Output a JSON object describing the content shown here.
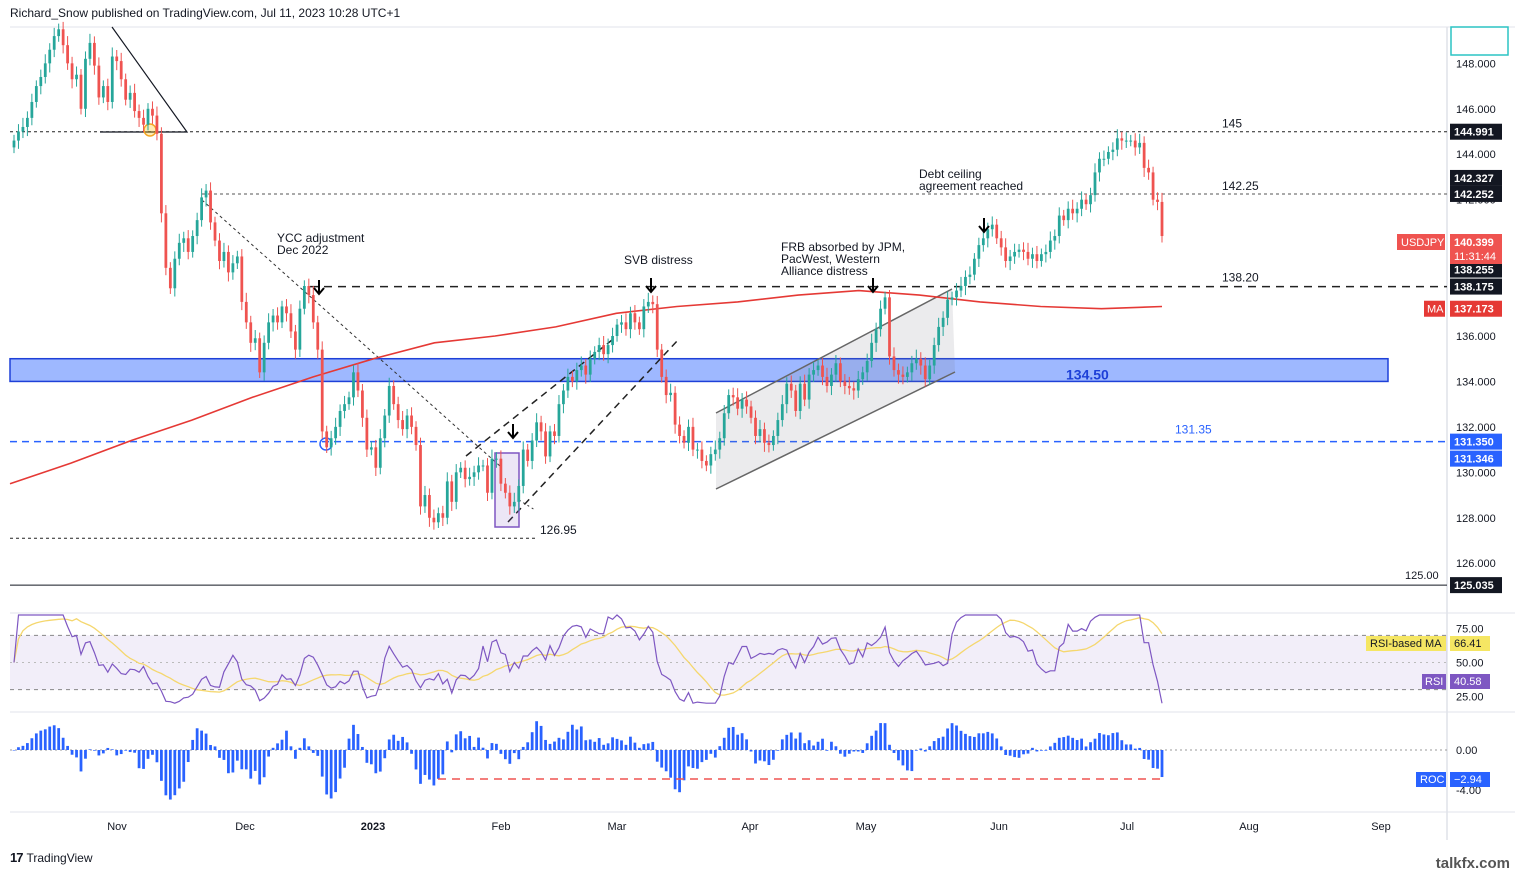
{
  "header": {
    "published_text": "Richard_Snow published on TradingView.com, Jul 11, 2023 10:28 UTC+1"
  },
  "footer": {
    "logo_text": "TradingView",
    "watermark": "talkfx.com"
  },
  "colors": {
    "bull": "#26a69a",
    "bear": "#ef5350",
    "ma": "#e53935",
    "rsi": "#7e57c2",
    "rsi_ma": "#f5d76e",
    "roc": "#2962ff",
    "zone": "#2962ff"
  },
  "chart_data": [
    {
      "type": "candlestick",
      "symbol": "USDJPY",
      "price_labels": {
        "USDJPY": "140.399",
        "countdown": "11:31:44",
        "MA": "137.173"
      },
      "ylim": [
        124.6,
        149.6
      ],
      "y_ticks": [
        "148.000",
        "146.000",
        "144.000",
        "142.000",
        "140.000",
        "138.000",
        "136.000",
        "134.000",
        "132.000",
        "130.000",
        "128.000",
        "126.000"
      ],
      "x_ticks": [
        "Nov",
        "Dec",
        "2023",
        "Feb",
        "Mar",
        "Apr",
        "May",
        "Jun",
        "Jul",
        "Aug",
        "Sep"
      ],
      "levels": [
        {
          "label": "145",
          "value": 144.991,
          "axis_label": "144.991"
        },
        {
          "label": "142.25",
          "value": 142.252,
          "axis_label": "142.252"
        },
        {
          "label": "138.20",
          "value": 138.175,
          "axis_label": "138.175"
        },
        {
          "label": "131.35",
          "value": 131.35,
          "axis_label": "131.350"
        },
        {
          "label": "125.00",
          "value": 125.035,
          "axis_label": "125.035"
        },
        {
          "label": "126.95",
          "value": 127.1,
          "axis_label": ""
        }
      ],
      "extra_axis_labels": [
        "142.327",
        "138.255",
        "131.346"
      ],
      "zone": {
        "label": "134.50",
        "low": 134.0,
        "high": 135.0
      },
      "annotations": [
        {
          "text": [
            "YCC adjustment",
            "Dec 2022"
          ]
        },
        {
          "text": [
            "SVB distress"
          ]
        },
        {
          "text": [
            "FRB absorbed by JPM,",
            "PacWest, Western",
            "Alliance distress"
          ]
        },
        {
          "text": [
            "Debt ceiling",
            "agreement reached"
          ]
        }
      ],
      "closes": [
        144.6,
        145.0,
        145.2,
        145.6,
        146.3,
        147.0,
        147.4,
        148.0,
        148.6,
        149.2,
        149.5,
        148.8,
        148.0,
        147.3,
        147.5,
        146.0,
        148.2,
        148.9,
        147.9,
        146.5,
        147.0,
        146.3,
        148.3,
        148.1,
        147.3,
        146.4,
        146.7,
        145.9,
        145.6,
        145.3,
        146.0,
        145.7,
        144.9,
        141.4,
        139.0,
        138.1,
        139.4,
        140.1,
        140.3,
        139.7,
        140.4,
        141.1,
        142.1,
        142.4,
        141.0,
        140.2,
        139.3,
        139.7,
        138.8,
        139.2,
        139.5,
        137.5,
        136.6,
        135.7,
        135.9,
        134.4,
        135.7,
        136.6,
        136.9,
        136.6,
        137.3,
        137.0,
        136.2,
        135.4,
        137.2,
        138.2,
        137.8,
        136.6,
        135.4,
        131.8,
        131.1,
        131.5,
        132.0,
        132.7,
        133.0,
        133.3,
        134.4,
        133.6,
        132.4,
        131.0,
        131.1,
        130.2,
        131.5,
        132.5,
        133.8,
        133.0,
        132.3,
        131.9,
        132.5,
        132.0,
        131.2,
        128.5,
        129.0,
        128.0,
        127.8,
        128.2,
        128.0,
        129.6,
        128.7,
        130.0,
        130.2,
        129.7,
        129.8,
        130.0,
        130.3,
        130.3,
        129.1,
        130.6,
        130.6,
        129.5,
        129.1,
        128.5,
        128.7,
        129.4,
        131.0,
        130.5,
        131.4,
        132.2,
        131.8,
        130.7,
        131.8,
        131.6,
        133.0,
        133.6,
        134.2,
        134.0,
        134.5,
        134.7,
        134.3,
        135.0,
        135.3,
        135.6,
        135.2,
        135.6,
        136.0,
        136.5,
        136.6,
        136.3,
        137.0,
        136.6,
        136.3,
        137.3,
        137.5,
        137.4,
        135.4,
        134.2,
        133.4,
        133.5,
        132.1,
        131.6,
        131.3,
        132.0,
        131.0,
        131.0,
        130.5,
        130.3,
        130.8,
        131.0,
        131.5,
        132.6,
        133.4,
        133.3,
        132.8,
        133.2,
        132.9,
        132.4,
        131.6,
        131.9,
        131.3,
        131.2,
        131.6,
        132.3,
        133.0,
        133.9,
        133.6,
        132.7,
        133.9,
        133.2,
        134.3,
        134.5,
        134.7,
        134.2,
        133.8,
        134.3,
        134.8,
        134.0,
        133.8,
        133.7,
        133.6,
        134.1,
        134.4,
        134.9,
        135.7,
        136.3,
        137.2,
        137.7,
        135.1,
        134.5,
        134.3,
        134.2,
        134.4,
        134.8,
        135.0,
        134.7,
        134.1,
        134.7,
        135.6,
        136.4,
        136.8,
        137.6,
        137.7,
        138.0,
        138.2,
        138.6,
        138.7,
        139.4,
        140.0,
        140.3,
        140.7,
        140.9,
        140.3,
        139.9,
        139.3,
        139.5,
        139.7,
        139.8,
        139.7,
        139.4,
        139.6,
        139.3,
        139.6,
        139.7,
        140.2,
        140.4,
        141.3,
        141.1,
        141.6,
        141.4,
        141.6,
        142.0,
        141.8,
        142.2,
        143.2,
        143.8,
        143.8,
        144.1,
        144.2,
        144.7,
        144.6,
        144.6,
        144.6,
        144.3,
        144.5,
        143.4,
        143.2,
        142.0,
        141.9,
        140.4
      ],
      "ma_values": [
        129.5,
        130.4,
        131.4,
        132.3,
        133.3,
        134.2,
        135.0,
        135.7,
        136.0,
        136.4,
        137.0,
        137.3,
        137.5,
        137.8,
        138.0,
        137.8,
        137.5,
        137.3,
        137.2,
        137.3
      ],
      "rsi": {
        "label": "RSI",
        "value": 40.58,
        "ma_label": "RSI-based MA",
        "ma_value": 66.41,
        "ticks": [
          "75.00",
          "50.00",
          "25.00"
        ],
        "upper": 70,
        "lower": 30
      },
      "roc": {
        "label": "ROC",
        "value": -2.94,
        "ticks": [
          "0.00",
          "-4.00"
        ]
      }
    }
  ]
}
